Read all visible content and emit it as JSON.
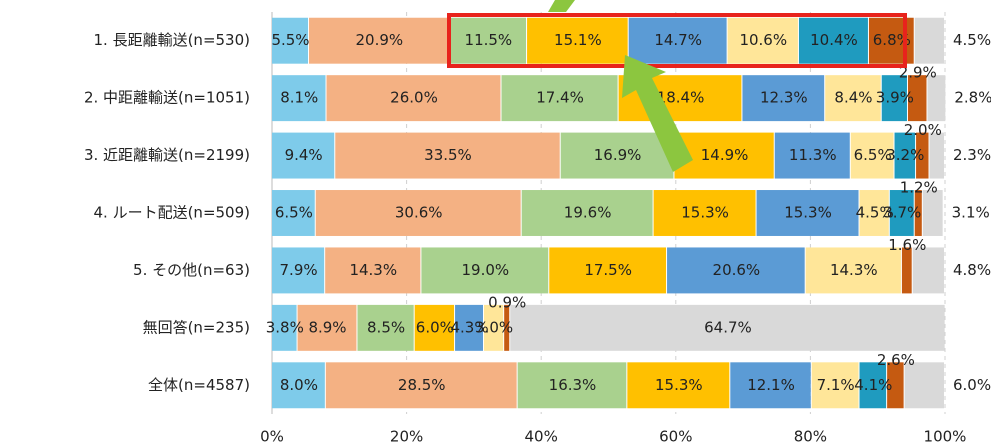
{
  "chart_data": {
    "type": "stacked-bar-horizontal",
    "categories": [
      "1. 長距離輸送(n=530)",
      "2. 中距離輸送(n=1051)",
      "3. 近距離輸送(n=2199)",
      "4. ルート配送(n=509)",
      "5. その他(n=63)",
      "無回答(n=235)",
      "全体(n=4587)"
    ],
    "series": [
      {
        "color": "#7ecbea",
        "values": [
          5.5,
          8.1,
          9.4,
          6.5,
          7.9,
          3.8,
          8.0
        ],
        "value_labels": [
          "5.5%",
          "8.1%",
          "9.4%",
          "6.5%",
          "7.9%",
          "3.8%",
          "8.0%"
        ]
      },
      {
        "color": "#f4b183",
        "values": [
          20.9,
          26.0,
          33.5,
          30.6,
          14.3,
          8.9,
          28.5
        ],
        "value_labels": [
          "20.9%",
          "26.0%",
          "33.5%",
          "30.6%",
          "14.3%",
          "8.9%",
          "28.5%"
        ]
      },
      {
        "color": "#a9d18e",
        "values": [
          11.5,
          17.4,
          16.9,
          19.6,
          19.0,
          8.5,
          16.3
        ],
        "value_labels": [
          "11.5%",
          "17.4%",
          "16.9%",
          "19.6%",
          "19.0%",
          "8.5%",
          "16.3%"
        ]
      },
      {
        "color": "#ffc000",
        "values": [
          15.1,
          18.4,
          14.9,
          15.3,
          17.5,
          6.0,
          15.3
        ],
        "value_labels": [
          "15.1%",
          "18.4%",
          "14.9%",
          "15.3%",
          "17.5%",
          "6.0%",
          "15.3%"
        ]
      },
      {
        "color": "#5b9bd5",
        "values": [
          14.7,
          12.3,
          11.3,
          15.3,
          20.6,
          4.3,
          12.1
        ],
        "value_labels": [
          "14.7%",
          "12.3%",
          "11.3%",
          "15.3%",
          "20.6%",
          "4.3%",
          "12.1%"
        ]
      },
      {
        "color": "#ffe699",
        "values": [
          10.6,
          8.4,
          6.5,
          4.5,
          14.3,
          3.0,
          7.1
        ],
        "value_labels": [
          "10.6%",
          "8.4%",
          "6.5%",
          "4.5%",
          "14.3%",
          "3.0%",
          "7.1%"
        ]
      },
      {
        "color": "#1f9bbf",
        "values": [
          10.4,
          3.9,
          3.2,
          3.7,
          null,
          null,
          4.1
        ],
        "value_labels": [
          "10.4%",
          "3.9%",
          "3.2%",
          "3.7%",
          null,
          null,
          "4.1%"
        ]
      },
      {
        "color": "#c55a11",
        "values": [
          6.8,
          2.9,
          2.0,
          1.2,
          1.6,
          0.9,
          2.6
        ],
        "value_labels": [
          "6.8%",
          "2.9%",
          "2.0%",
          "1.2%",
          "1.6%",
          "0.9%",
          "2.6%"
        ]
      },
      {
        "color": "#d9d9d9",
        "values": [
          4.5,
          2.8,
          2.3,
          3.1,
          4.8,
          64.7,
          6.0
        ],
        "value_labels": [
          "4.5%",
          "2.8%",
          "2.3%",
          "3.1%",
          "4.8%",
          "64.7%",
          "6.0%"
        ]
      }
    ],
    "xlim": [
      0,
      100
    ],
    "xticks": [
      {
        "value": 0,
        "label": "0%"
      },
      {
        "value": 20,
        "label": "20%"
      },
      {
        "value": 40,
        "label": "40%"
      },
      {
        "value": 60,
        "label": "60%"
      },
      {
        "value": 80,
        "label": "80%"
      },
      {
        "value": 100,
        "label": "100%"
      }
    ],
    "grid": true
  }
}
